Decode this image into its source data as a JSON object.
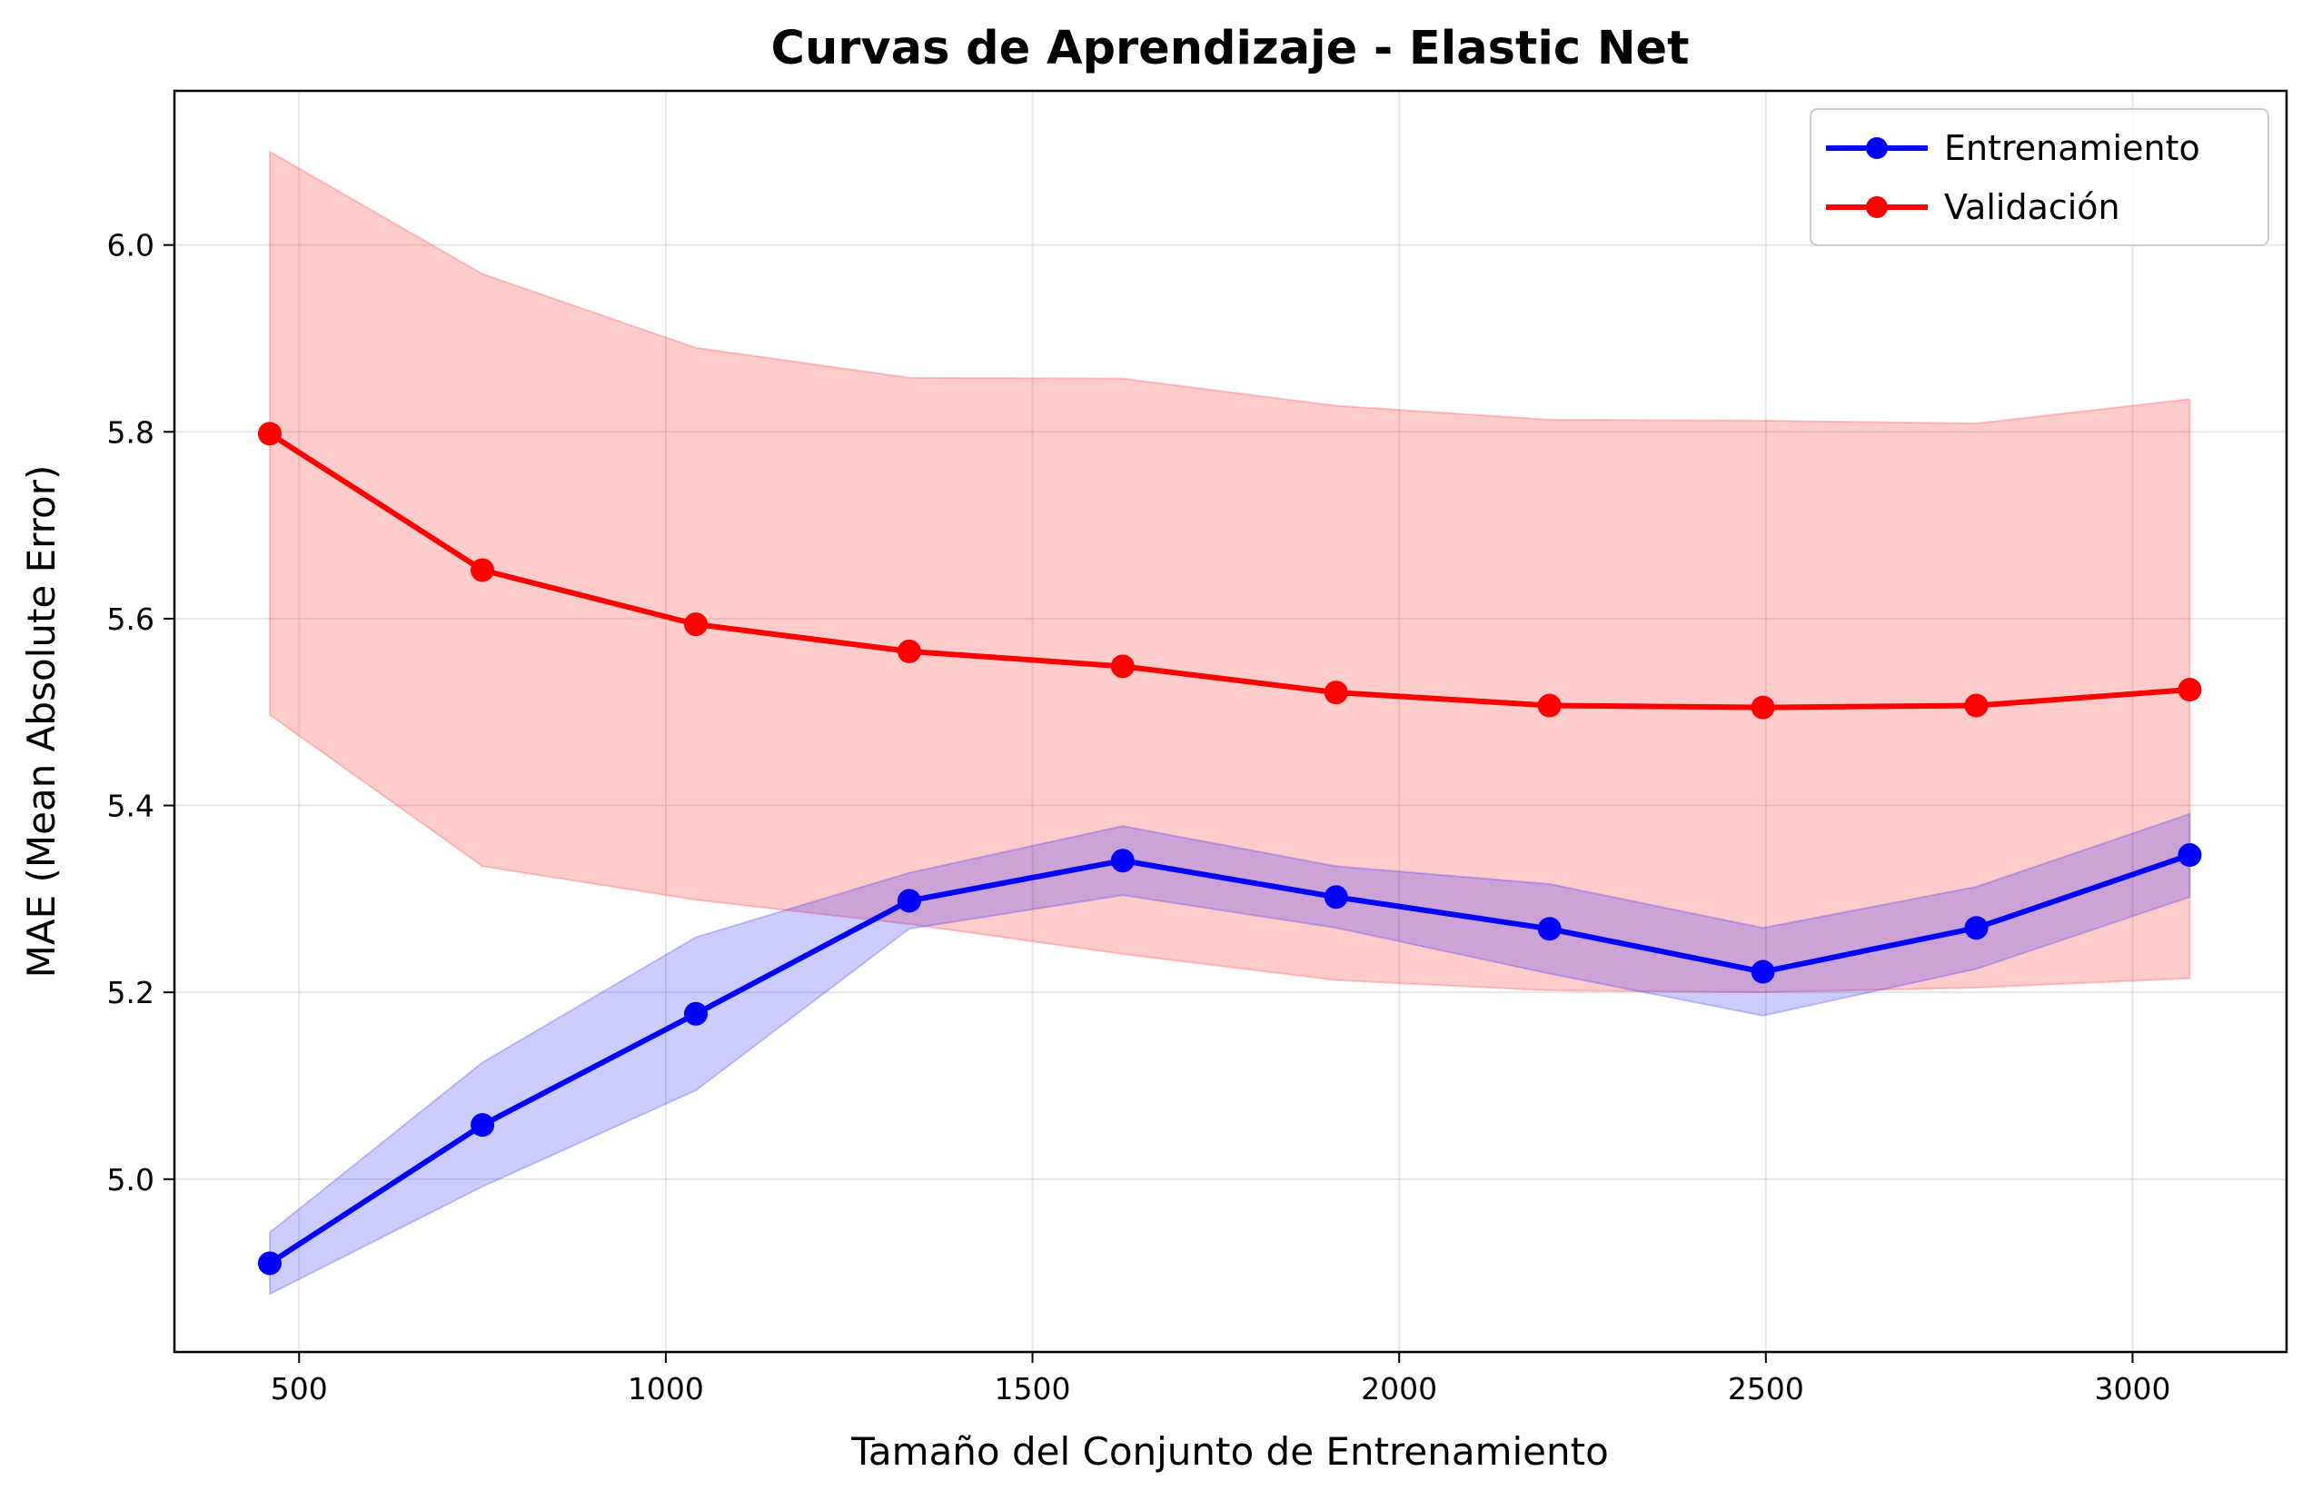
{
  "chart_data": {
    "type": "line",
    "title": "Curvas de Aprendizaje - Elastic Net",
    "xlabel": "Tamaño del Conjunto de Entrenamiento",
    "ylabel": "MAE (Mean Absolute Error)",
    "xlim": [
      330,
      3210
    ],
    "ylim": [
      4.815,
      6.165
    ],
    "xticks": [
      500,
      1000,
      1500,
      2000,
      2500,
      3000
    ],
    "yticks": [
      5.0,
      5.2,
      5.4,
      5.6,
      5.8,
      6.0
    ],
    "xtick_labels": [
      "500",
      "1000",
      "1500",
      "2000",
      "2500",
      "3000"
    ],
    "ytick_labels": [
      "5.0",
      "5.2",
      "5.4",
      "5.6",
      "5.8",
      "6.0"
    ],
    "grid": true,
    "legend_position": "upper right",
    "x": [
      460,
      750,
      1041,
      1332,
      1623,
      1914,
      2205,
      2496,
      2787,
      3078
    ],
    "series": [
      {
        "name": "Entrenamiento",
        "color": "#0000ff",
        "values": [
          4.91,
          5.058,
          5.177,
          5.298,
          5.341,
          5.302,
          5.268,
          5.222,
          5.269,
          5.347
        ],
        "band_lower": [
          4.877,
          4.992,
          5.095,
          5.268,
          5.304,
          5.269,
          5.22,
          5.175,
          5.225,
          5.302
        ],
        "band_upper": [
          4.943,
          5.125,
          5.259,
          5.328,
          5.378,
          5.335,
          5.316,
          5.269,
          5.313,
          5.391
        ]
      },
      {
        "name": "Validación",
        "color": "#ff0000",
        "values": [
          5.798,
          5.652,
          5.594,
          5.565,
          5.549,
          5.521,
          5.507,
          5.505,
          5.507,
          5.524
        ],
        "band_lower": [
          5.497,
          5.335,
          5.299,
          5.273,
          5.241,
          5.213,
          5.202,
          5.2,
          5.205,
          5.215
        ],
        "band_upper": [
          6.1,
          5.969,
          5.89,
          5.858,
          5.857,
          5.828,
          5.813,
          5.812,
          5.809,
          5.835
        ]
      }
    ]
  }
}
